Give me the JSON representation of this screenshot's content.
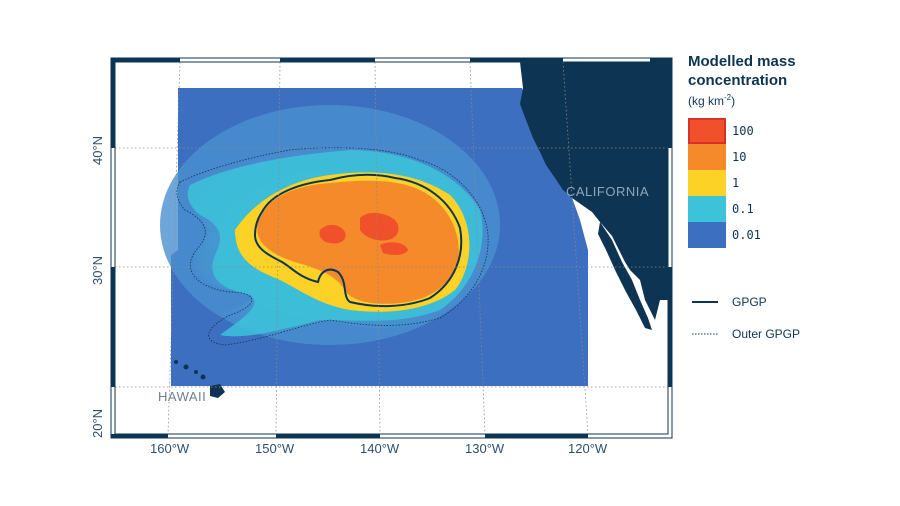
{
  "legend": {
    "title": "Modelled mass concentration",
    "unit": "(kg km",
    "unit_exp": "-2",
    "unit_close": ")",
    "bins": [
      {
        "label": "100",
        "color": "#f0502a",
        "border": "#d9302a"
      },
      {
        "label": "10",
        "color": "#f58a2a",
        "border": "#f58a2a"
      },
      {
        "label": "1",
        "color": "#fbd225",
        "border": "#fbd225"
      },
      {
        "label": "0.1",
        "color": "#3cc3d9",
        "border": "#3cc3d9"
      },
      {
        "label": "0.01",
        "color": "#3d6fc0",
        "border": "#3d6fc0"
      }
    ],
    "lines": [
      {
        "label": "GPGP",
        "style": "solid"
      },
      {
        "label": "Outer GPGP",
        "style": "dotted"
      }
    ]
  },
  "map": {
    "lon_labels": [
      "160°W",
      "150°W",
      "140°W",
      "130°W",
      "120°W"
    ],
    "lat_labels": [
      "40°N",
      "30°N",
      "20°N"
    ],
    "places": {
      "california": "CALIFORNIA",
      "hawaii": "HAWAII"
    },
    "land_color": "#0d3553",
    "ocean_color": "#ffffff"
  }
}
